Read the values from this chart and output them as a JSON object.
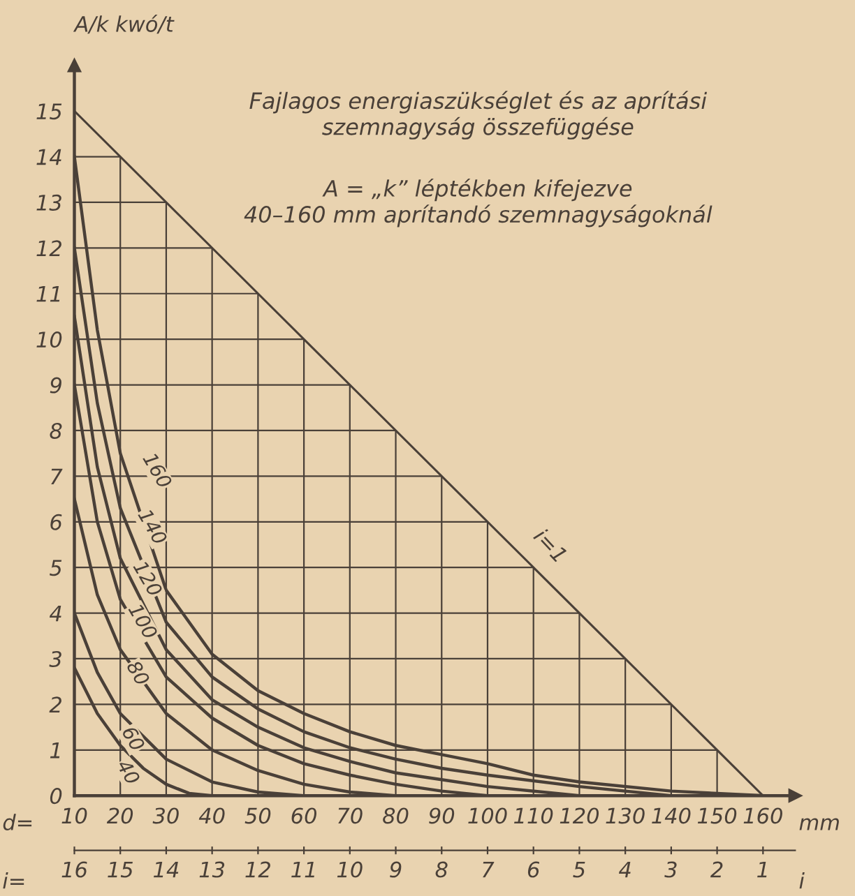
{
  "chart_data": {
    "type": "line",
    "title": "Fajlagos energiaszükséglet és az aprítási\nszemnagyság összefüggése",
    "subtitle": "A = „k” léptékben kifejezve\n40–160 mm aprítandó szemnagyságoknál",
    "ylabel": "A/k kwó/t",
    "xlabel": "mm",
    "x2label": "i",
    "annotations": [
      "d=",
      "i="
    ],
    "xlim": [
      10,
      167
    ],
    "ylim": [
      0,
      16
    ],
    "xticks": [
      10,
      20,
      30,
      40,
      50,
      60,
      70,
      80,
      90,
      100,
      110,
      120,
      130,
      140,
      150,
      160
    ],
    "yticks": [
      0,
      1,
      2,
      3,
      4,
      5,
      6,
      7,
      8,
      9,
      10,
      11,
      12,
      13,
      14,
      15
    ],
    "x2lim": [
      16,
      0.3
    ],
    "x2ticks": [
      16,
      15,
      14,
      13,
      12,
      11,
      10,
      9,
      8,
      7,
      6,
      5,
      4,
      3,
      2,
      1
    ],
    "grid": true,
    "series": [
      {
        "name": "i=1",
        "color": "#4a4038",
        "x": [
          10,
          160
        ],
        "values": [
          15,
          0
        ]
      },
      {
        "name": "40",
        "color": "#4a4038",
        "x": [
          10,
          15,
          20,
          25,
          30,
          35,
          40
        ],
        "values": [
          2.8,
          1.8,
          1.1,
          0.6,
          0.25,
          0.05,
          0
        ]
      },
      {
        "name": "60",
        "color": "#4a4038",
        "x": [
          10,
          15,
          20,
          30,
          40,
          50,
          60
        ],
        "values": [
          4,
          2.7,
          1.8,
          0.8,
          0.3,
          0.08,
          0
        ]
      },
      {
        "name": "80",
        "color": "#4a4038",
        "x": [
          10,
          15,
          20,
          30,
          40,
          50,
          60,
          70,
          80
        ],
        "values": [
          6.5,
          4.4,
          3.2,
          1.8,
          1.0,
          0.55,
          0.25,
          0.08,
          0
        ]
      },
      {
        "name": "100",
        "color": "#4a4038",
        "x": [
          10,
          15,
          20,
          30,
          40,
          50,
          60,
          70,
          80,
          90,
          100
        ],
        "values": [
          9,
          6,
          4.3,
          2.6,
          1.7,
          1.1,
          0.7,
          0.45,
          0.25,
          0.1,
          0
        ]
      },
      {
        "name": "120",
        "color": "#4a4038",
        "x": [
          10,
          15,
          20,
          30,
          40,
          50,
          60,
          70,
          80,
          90,
          100,
          120
        ],
        "values": [
          10.5,
          7.2,
          5.2,
          3.2,
          2.1,
          1.5,
          1.05,
          0.75,
          0.5,
          0.35,
          0.2,
          0
        ]
      },
      {
        "name": "140",
        "color": "#4a4038",
        "x": [
          10,
          15,
          20,
          30,
          40,
          50,
          60,
          70,
          80,
          90,
          100,
          120,
          140
        ],
        "values": [
          12,
          8.6,
          6.3,
          3.8,
          2.6,
          1.9,
          1.4,
          1.05,
          0.8,
          0.6,
          0.45,
          0.2,
          0
        ]
      },
      {
        "name": "160",
        "color": "#4a4038",
        "x": [
          10,
          15,
          20,
          30,
          40,
          50,
          60,
          70,
          80,
          90,
          100,
          110,
          120,
          140,
          160
        ],
        "values": [
          14,
          10.2,
          7.5,
          4.5,
          3.1,
          2.3,
          1.8,
          1.4,
          1.1,
          0.9,
          0.7,
          0.45,
          0.3,
          0.1,
          0
        ]
      }
    ]
  }
}
